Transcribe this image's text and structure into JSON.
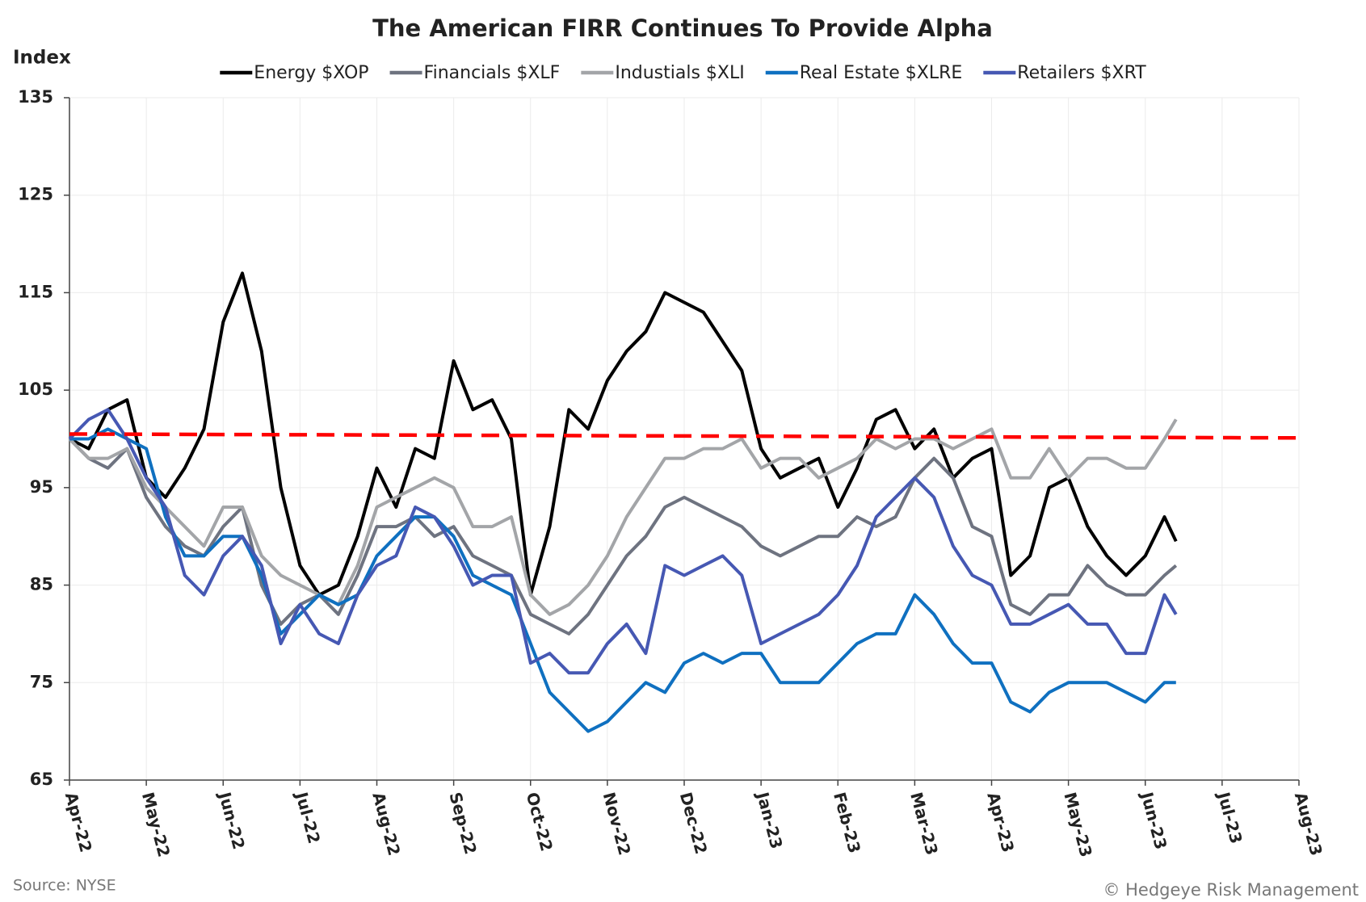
{
  "chart_data": {
    "type": "line",
    "title": "The American FIRR Continues To Provide Alpha",
    "y_label": "Index",
    "source": "Source: NYSE",
    "credit": "© Hedgeye Risk Management",
    "x": [
      0,
      0.25,
      0.5,
      0.75,
      1,
      1.25,
      1.5,
      1.75,
      2,
      2.25,
      2.5,
      2.75,
      3,
      3.25,
      3.5,
      3.75,
      4,
      4.25,
      4.5,
      4.75,
      5,
      5.25,
      5.5,
      5.75,
      6,
      6.25,
      6.5,
      6.75,
      7,
      7.25,
      7.5,
      7.75,
      8,
      8.25,
      8.5,
      8.75,
      9,
      9.25,
      9.5,
      9.75,
      10,
      10.25,
      10.5,
      10.75,
      11,
      11.25,
      11.5,
      11.75,
      12,
      12.25,
      12.5,
      12.75,
      13,
      13.25,
      13.5,
      13.75,
      14,
      14.25,
      14.4
    ],
    "series": [
      {
        "name": "Energy $XOP",
        "color": "#000000",
        "values": [
          100,
          99,
          103,
          104,
          96,
          94,
          97,
          101,
          112,
          117,
          109,
          95,
          87,
          84,
          85,
          90,
          97,
          93,
          99,
          98,
          108,
          103,
          104,
          100,
          84,
          91,
          103,
          101,
          106,
          109,
          111,
          115,
          114,
          113,
          110,
          107,
          99,
          96,
          97,
          98,
          93,
          97,
          102,
          103,
          99,
          101,
          96,
          98,
          99,
          86,
          88,
          95,
          96,
          91,
          88,
          86,
          88,
          92,
          89.5
        ]
      },
      {
        "name": "Financials $XLF",
        "color": "#6e7380",
        "values": [
          100,
          98,
          97,
          99,
          94,
          91,
          89,
          88,
          91,
          93,
          85,
          81,
          83,
          84,
          82,
          86,
          91,
          91,
          92,
          90,
          91,
          88,
          87,
          86,
          82,
          81,
          80,
          82,
          85,
          88,
          90,
          93,
          94,
          93,
          92,
          91,
          89,
          88,
          89,
          90,
          90,
          92,
          91,
          92,
          96,
          98,
          96,
          91,
          90,
          83,
          82,
          84,
          84,
          87,
          85,
          84,
          84,
          86,
          87
        ]
      },
      {
        "name": "Industials $XLI",
        "color": "#a3a5a8",
        "values": [
          100,
          98,
          98,
          99,
          95,
          93,
          91,
          89,
          93,
          93,
          88,
          86,
          85,
          84,
          83,
          87,
          93,
          94,
          95,
          96,
          95,
          91,
          91,
          92,
          84,
          82,
          83,
          85,
          88,
          92,
          95,
          98,
          98,
          99,
          99,
          100,
          97,
          98,
          98,
          96,
          97,
          98,
          100,
          99,
          100,
          100,
          99,
          100,
          101,
          96,
          96,
          99,
          96,
          98,
          98,
          97,
          97,
          100,
          102
        ]
      },
      {
        "name": "Real Estate $XLRE",
        "color": "#0f70c0",
        "values": [
          100,
          100,
          101,
          100,
          99,
          92,
          88,
          88,
          90,
          90,
          86,
          80,
          82,
          84,
          83,
          84,
          88,
          90,
          92,
          92,
          90,
          86,
          85,
          84,
          79,
          74,
          72,
          70,
          71,
          73,
          75,
          74,
          77,
          78,
          77,
          78,
          78,
          75,
          75,
          75,
          77,
          79,
          80,
          80,
          84,
          82,
          79,
          77,
          77,
          73,
          72,
          74,
          75,
          75,
          75,
          74,
          73,
          75,
          75
        ]
      },
      {
        "name": "Retailers $XRT",
        "color": "#4658b3",
        "values": [
          100,
          102,
          103,
          100,
          96,
          93,
          86,
          84,
          88,
          90,
          87,
          79,
          83,
          80,
          79,
          84,
          87,
          88,
          93,
          92,
          89,
          85,
          86,
          86,
          77,
          78,
          76,
          76,
          79,
          81,
          78,
          87,
          86,
          87,
          88,
          86,
          79,
          80,
          81,
          82,
          84,
          87,
          92,
          94,
          96,
          94,
          89,
          86,
          85,
          81,
          81,
          82,
          83,
          81,
          81,
          78,
          78,
          84,
          82
        ]
      }
    ],
    "reference": {
      "x": [
        0,
        16
      ],
      "values": [
        100.5,
        100.1
      ],
      "color": "#ff0000"
    },
    "xlim": [
      0,
      16
    ],
    "xticks": [
      {
        "value": 0,
        "label": "Apr-22"
      },
      {
        "value": 1,
        "label": "May-22"
      },
      {
        "value": 2,
        "label": "Jun-22"
      },
      {
        "value": 3,
        "label": "Jul-22"
      },
      {
        "value": 4,
        "label": "Aug-22"
      },
      {
        "value": 5,
        "label": "Sep-22"
      },
      {
        "value": 6,
        "label": "Oct-22"
      },
      {
        "value": 7,
        "label": "Nov-22"
      },
      {
        "value": 8,
        "label": "Dec-22"
      },
      {
        "value": 9,
        "label": "Jan-23"
      },
      {
        "value": 10,
        "label": "Feb-23"
      },
      {
        "value": 11,
        "label": "Mar-23"
      },
      {
        "value": 12,
        "label": "Apr-23"
      },
      {
        "value": 13,
        "label": "May-23"
      },
      {
        "value": 14,
        "label": "Jun-23"
      },
      {
        "value": 15,
        "label": "Jul-23"
      },
      {
        "value": 16,
        "label": "Aug-23"
      }
    ],
    "ylim": [
      65,
      135
    ],
    "yticks": [
      65,
      75,
      85,
      95,
      105,
      115,
      125,
      135
    ],
    "grid": true
  }
}
